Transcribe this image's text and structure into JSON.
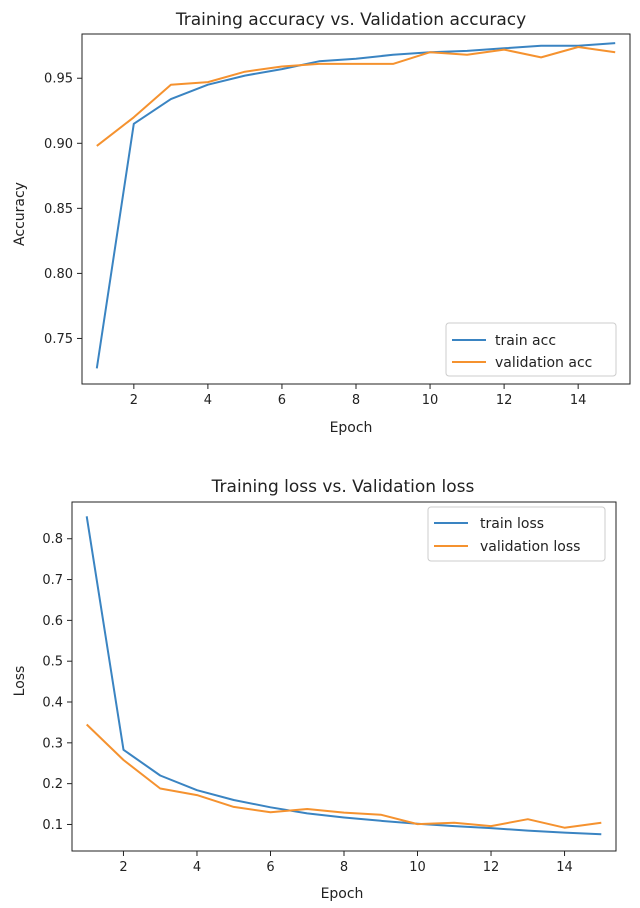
{
  "chart_data": [
    {
      "type": "line",
      "title": "Training accuracy vs. Validation accuracy",
      "xlabel": "Epoch",
      "ylabel": "Accuracy",
      "xlim": [
        0.6,
        15.4
      ],
      "ylim": [
        0.715,
        0.984
      ],
      "xticks": [
        2,
        4,
        6,
        8,
        10,
        12,
        14
      ],
      "yticks": [
        0.75,
        0.8,
        0.85,
        0.9,
        0.95
      ],
      "ytick_labels": [
        "0.75",
        "0.80",
        "0.85",
        "0.90",
        "0.95"
      ],
      "legend_position": "lower-right",
      "x": [
        1,
        2,
        3,
        4,
        5,
        6,
        7,
        8,
        9,
        10,
        11,
        12,
        13,
        14,
        15
      ],
      "series": [
        {
          "name": "train acc",
          "color": "#3a84c2",
          "values": [
            0.727,
            0.915,
            0.934,
            0.945,
            0.952,
            0.957,
            0.963,
            0.965,
            0.968,
            0.97,
            0.971,
            0.973,
            0.975,
            0.975,
            0.977
          ]
        },
        {
          "name": "validation acc",
          "color": "#f5922f",
          "values": [
            0.898,
            0.92,
            0.945,
            0.947,
            0.955,
            0.959,
            0.961,
            0.961,
            0.961,
            0.97,
            0.968,
            0.972,
            0.966,
            0.974,
            0.97
          ]
        }
      ]
    },
    {
      "type": "line",
      "title": "Training loss vs. Validation loss",
      "xlabel": "Epoch",
      "ylabel": "Loss",
      "xlim": [
        0.6,
        15.4
      ],
      "ylim": [
        0.035,
        0.89
      ],
      "xticks": [
        2,
        4,
        6,
        8,
        10,
        12,
        14
      ],
      "yticks": [
        0.1,
        0.2,
        0.3,
        0.4,
        0.5,
        0.6,
        0.7,
        0.8
      ],
      "ytick_labels": [
        "0.1",
        "0.2",
        "0.3",
        "0.4",
        "0.5",
        "0.6",
        "0.7",
        "0.8"
      ],
      "legend_position": "upper-right",
      "x": [
        1,
        2,
        3,
        4,
        5,
        6,
        7,
        8,
        9,
        10,
        11,
        12,
        13,
        14,
        15
      ],
      "series": [
        {
          "name": "train loss",
          "color": "#3a84c2",
          "values": [
            0.855,
            0.283,
            0.22,
            0.184,
            0.16,
            0.142,
            0.127,
            0.117,
            0.109,
            0.102,
            0.096,
            0.091,
            0.085,
            0.08,
            0.076
          ]
        },
        {
          "name": "validation loss",
          "color": "#f5922f",
          "values": [
            0.345,
            0.258,
            0.188,
            0.172,
            0.143,
            0.13,
            0.138,
            0.129,
            0.124,
            0.101,
            0.104,
            0.096,
            0.113,
            0.092,
            0.104
          ]
        }
      ]
    }
  ]
}
